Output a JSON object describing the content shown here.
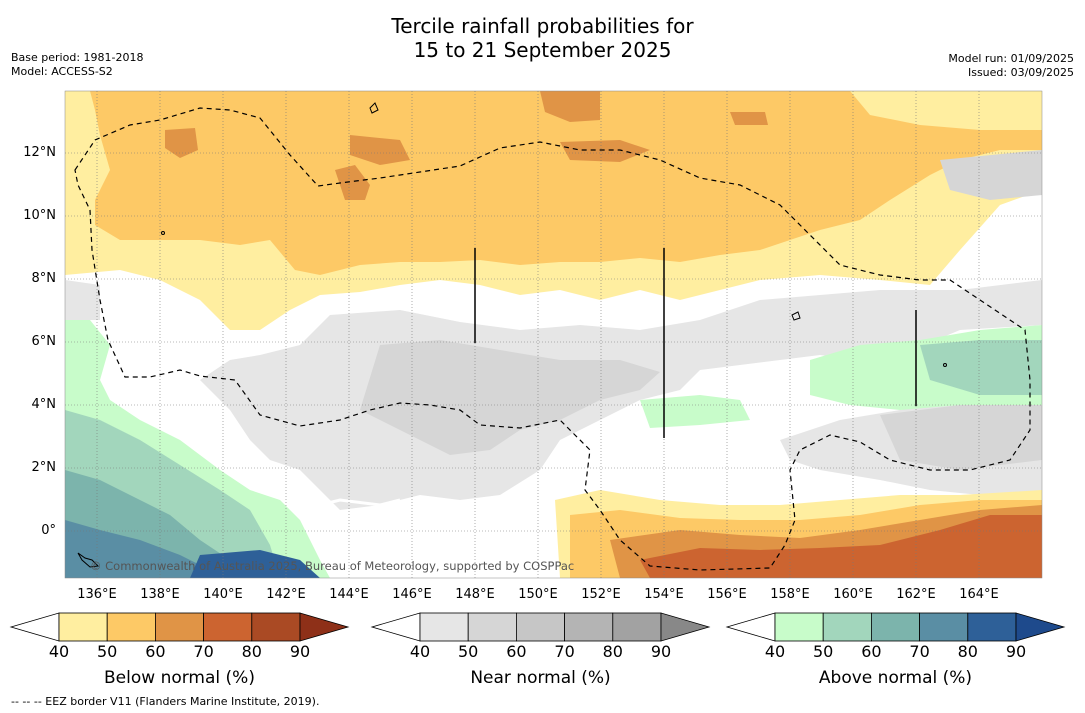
{
  "title_line1": "Tercile rainfall probabilities for",
  "title_line2": "15 to 21 September 2025",
  "base_period": "Base period: 1981-2018",
  "model": "Model: ACCESS-S2",
  "model_run": "Model run: 01/09/2025",
  "issued": "Issued: 03/09/2025",
  "lat_labels": [
    "12°N",
    "10°N",
    "8°N",
    "6°N",
    "4°N",
    "2°N",
    "0°"
  ],
  "lon_labels": [
    "136°E",
    "138°E",
    "140°E",
    "142°E",
    "144°E",
    "146°E",
    "148°E",
    "150°E",
    "152°E",
    "154°E",
    "156°E",
    "158°E",
    "160°E",
    "162°E",
    "164°E"
  ],
  "copyright": "© Commonwealth of Australia 2025, Bureau of Meteorology, supported by COSPPac",
  "footer": "--  --  -- EEZ border V11 (Flanders Marine Institute, 2019).",
  "colorbars": [
    {
      "label": "Below normal (%)",
      "ticks": [
        "40",
        "50",
        "60",
        "70",
        "80",
        "90"
      ],
      "colors": [
        "#ffffff",
        "#ffeea0",
        "#fdc966",
        "#e09446",
        "#cc6430",
        "#aa4a24",
        "#8e3018"
      ]
    },
    {
      "label": "Near normal (%)",
      "ticks": [
        "40",
        "50",
        "60",
        "70",
        "80",
        "90"
      ],
      "colors": [
        "#ffffff",
        "#e6e6e6",
        "#d6d6d6",
        "#c6c6c6",
        "#b4b4b4",
        "#a2a2a2",
        "#888888"
      ]
    },
    {
      "label": "Above normal (%)",
      "ticks": [
        "40",
        "50",
        "60",
        "70",
        "80",
        "90"
      ],
      "colors": [
        "#ffffff",
        "#c8fcca",
        "#a2d6bc",
        "#7cb4ac",
        "#5a8ea4",
        "#2e6098",
        "#1e4a8c"
      ]
    }
  ]
}
